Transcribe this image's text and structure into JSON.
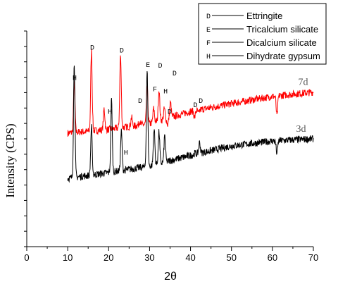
{
  "chart_data": {
    "type": "line",
    "title": "",
    "xlabel": "2θ",
    "ylabel": "Intensity (CPS)",
    "xlim": [
      0,
      70
    ],
    "x_ticks": [
      0,
      10,
      20,
      30,
      40,
      50,
      60,
      70
    ],
    "y_ticks_shown": false,
    "grid": false,
    "legend_position": "top-right",
    "legend": [
      {
        "symbol": "D",
        "label": "Ettringite"
      },
      {
        "symbol": "E",
        "label": "Tricalcium silicate"
      },
      {
        "symbol": "F",
        "label": "Dicalcium silicate"
      },
      {
        "symbol": "H",
        "label": "Dihydrate gypsum"
      }
    ],
    "series": [
      {
        "name": "7d",
        "color": "#ff0000",
        "baseline": [
          [
            10,
            158
          ],
          [
            20,
            163
          ],
          [
            30,
            171
          ],
          [
            40,
            188
          ],
          [
            50,
            199
          ],
          [
            60,
            209
          ],
          [
            70,
            215
          ]
        ],
        "peaks": [
          {
            "x": 11.6,
            "y": 230
          },
          {
            "x": 15.8,
            "y": 272
          },
          {
            "x": 18.9,
            "y": 192
          },
          {
            "x": 22.9,
            "y": 266
          },
          {
            "x": 25.6,
            "y": 180
          },
          {
            "x": 27.6,
            "y": 175
          },
          {
            "x": 29.4,
            "y": 222
          },
          {
            "x": 31.0,
            "y": 192
          },
          {
            "x": 32.3,
            "y": 218
          },
          {
            "x": 33.6,
            "y": 192
          },
          {
            "x": 34.4,
            "y": 170
          },
          {
            "x": 35.1,
            "y": 200
          },
          {
            "x": 41.0,
            "y": 180
          },
          {
            "x": 42.0,
            "y": 185
          },
          {
            "x": 61.1,
            "y": 182
          }
        ]
      },
      {
        "name": "3d",
        "color": "#000000",
        "baseline": [
          [
            10,
            95
          ],
          [
            20,
            103
          ],
          [
            30,
            112
          ],
          [
            40,
            127
          ],
          [
            50,
            140
          ],
          [
            60,
            147
          ],
          [
            70,
            150
          ]
        ],
        "peaks": [
          {
            "x": 11.6,
            "y": 255
          },
          {
            "x": 15.8,
            "y": 166
          },
          {
            "x": 20.7,
            "y": 205
          },
          {
            "x": 23.1,
            "y": 160
          },
          {
            "x": 29.4,
            "y": 244
          },
          {
            "x": 31.1,
            "y": 165
          },
          {
            "x": 32.3,
            "y": 160
          },
          {
            "x": 33.7,
            "y": 155
          },
          {
            "x": 41.1,
            "y": 130
          },
          {
            "x": 42.2,
            "y": 145
          },
          {
            "x": 61.1,
            "y": 130
          }
        ]
      }
    ],
    "annotations": [
      {
        "text": "H",
        "x": 11.7,
        "y": 232
      },
      {
        "text": "D",
        "x": 16.0,
        "y": 274
      },
      {
        "text": "H",
        "x": 20.3,
        "y": 185
      },
      {
        "text": "D",
        "x": 23.2,
        "y": 270
      },
      {
        "text": "D",
        "x": 27.7,
        "y": 200
      },
      {
        "text": "E",
        "x": 29.6,
        "y": 250
      },
      {
        "text": "F",
        "x": 31.3,
        "y": 216
      },
      {
        "text": "D",
        "x": 32.6,
        "y": 249
      },
      {
        "text": "H",
        "x": 33.9,
        "y": 213
      },
      {
        "text": "D",
        "x": 34.9,
        "y": 185
      },
      {
        "text": "D",
        "x": 36.1,
        "y": 238
      },
      {
        "text": "D",
        "x": 41.2,
        "y": 194
      },
      {
        "text": "D",
        "x": 42.5,
        "y": 200
      },
      {
        "text": "H",
        "x": 24.2,
        "y": 128
      }
    ],
    "series_labels": [
      {
        "text": "7d",
        "x": 67.5,
        "y": 225
      },
      {
        "text": "3d",
        "x": 67.0,
        "y": 160
      }
    ]
  }
}
